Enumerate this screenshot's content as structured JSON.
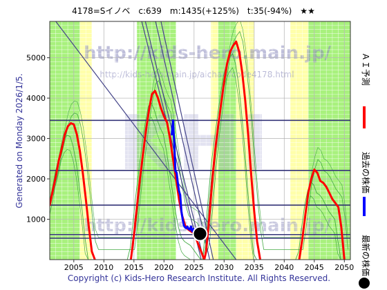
{
  "header": {
    "title": "4178=Sイノベ　c:639　m:1435(+125%)　t:35(-94%)　★★"
  },
  "side_text": "Generated on Monday 2026/1/5.",
  "footer": "Copyright (c) Kids-Hero Research Institute. All Rights Reserved.",
  "watermark": {
    "main": "http://kids-hero.main.jp/",
    "sub": "http://kids-hero.main.jp/aichart/code4178.html",
    "lower": "http://kids-hero.main.jp/",
    "logo": "KHI"
  },
  "legend": [
    {
      "label": "ＡＩ予測",
      "color": "#ff0000",
      "marker": "line"
    },
    {
      "label": "過去の株価",
      "color": "#0000ff",
      "marker": "line"
    },
    {
      "label": "最新の株価",
      "color": "#000000",
      "marker": "dot"
    }
  ],
  "colors": {
    "green_band": "#99ee66",
    "yellow_band": "#ffffaa",
    "red_series": "#ff0000",
    "blue_series": "#0000ff",
    "hline": "#333377",
    "trend": "#444488",
    "thin_green": "#44aa44"
  },
  "chart_data": {
    "type": "line",
    "xlim": [
      2001,
      2051
    ],
    "ylim": [
      0,
      5900
    ],
    "x_ticks": [
      2005,
      2010,
      2015,
      2020,
      2025,
      2030,
      2035,
      2040,
      2045,
      2050
    ],
    "y_ticks": [
      1000,
      2000,
      3000,
      4000,
      5000
    ],
    "grid": true,
    "legend_position": "right",
    "horizontal_lines": [
      3450,
      2210,
      1350,
      620,
      530
    ],
    "trend_lines": [
      {
        "x1": 2016.3,
        "y1": 5900,
        "x2": 2026.2,
        "y2": 0
      },
      {
        "x1": 2016.9,
        "y1": 5900,
        "x2": 2026.6,
        "y2": 0
      },
      {
        "x1": 2018.6,
        "y1": 5900,
        "x2": 2027.6,
        "y2": 0
      },
      {
        "x1": 2019.5,
        "y1": 5900,
        "x2": 2028.2,
        "y2": 0
      },
      {
        "x1": 2002.0,
        "y1": 5900,
        "x2": 2032.0,
        "y2": 0
      }
    ],
    "green_spans": [
      [
        2001,
        2006
      ],
      [
        2015.5,
        2022
      ],
      [
        2029,
        2032
      ],
      [
        2044,
        2051
      ]
    ],
    "yellow_spans": [
      [
        2006,
        2008
      ],
      [
        2027.8,
        2029
      ],
      [
        2032,
        2035
      ],
      [
        2041,
        2044
      ]
    ],
    "series": [
      {
        "name": "ＡＩ予測",
        "x": [
          2001,
          2001.5,
          2002,
          2002.5,
          2003,
          2003.5,
          2004,
          2004.5,
          2005,
          2005.5,
          2006,
          2006.5,
          2007,
          2007.5,
          2008,
          2008.5,
          2014.5,
          2015,
          2015.5,
          2016,
          2016.5,
          2017,
          2017.5,
          2018,
          2018.5,
          2019,
          2019.5,
          2020,
          2020.5,
          2021,
          2021.5,
          2022,
          2022.5,
          2023,
          2023.5,
          2024,
          2024.5,
          2025,
          2026.7,
          2027,
          2027.5,
          2028,
          2028.5,
          2029,
          2029.5,
          2030,
          2030.5,
          2031,
          2031.5,
          2032,
          2032.5,
          2033,
          2033.5,
          2034,
          2034.5,
          2035,
          2035.5,
          2036,
          2042.5,
          2043,
          2043.5,
          2044,
          2044.5,
          2045,
          2045.5,
          2046,
          2046.5,
          2047,
          2047.5,
          2048,
          2048.5,
          2049,
          2049.5,
          2050
        ],
        "y": [
          1350,
          1700,
          2050,
          2450,
          2750,
          3100,
          3300,
          3380,
          3350,
          3100,
          2700,
          2150,
          1500,
          800,
          200,
          0,
          0,
          600,
          1300,
          2000,
          2600,
          3200,
          3700,
          4100,
          4180,
          4000,
          3750,
          3550,
          3400,
          3000,
          2500,
          2000,
          1500,
          1100,
          850,
          750,
          700,
          650,
          0,
          200,
          1000,
          1900,
          2700,
          3300,
          3850,
          4400,
          4850,
          5150,
          5300,
          5400,
          5150,
          4650,
          3950,
          3100,
          2100,
          1200,
          450,
          0,
          0,
          500,
          1100,
          1650,
          2000,
          2230,
          2150,
          1950,
          1900,
          1800,
          1650,
          1500,
          1400,
          1300,
          800,
          0
        ]
      },
      {
        "name": "過去の株価",
        "x": [
          2021.3,
          2021.5,
          2021.7,
          2021.9,
          2022.1,
          2022.3,
          2022.5,
          2022.7,
          2022.9,
          2023.1,
          2023.3,
          2023.5,
          2023.7,
          2023.9,
          2024.1,
          2024.3,
          2024.5,
          2024.7,
          2024.9,
          2025.1,
          2025.3,
          2025.5,
          2025.7,
          2025.9
        ],
        "y": [
          3100,
          3450,
          2900,
          2200,
          2150,
          1900,
          1700,
          1600,
          1200,
          1000,
          850,
          800,
          780,
          820,
          760,
          740,
          820,
          700,
          760,
          680,
          650,
          700,
          660,
          639
        ]
      }
    ],
    "latest": {
      "x": 2026.0,
      "y": 639
    }
  }
}
